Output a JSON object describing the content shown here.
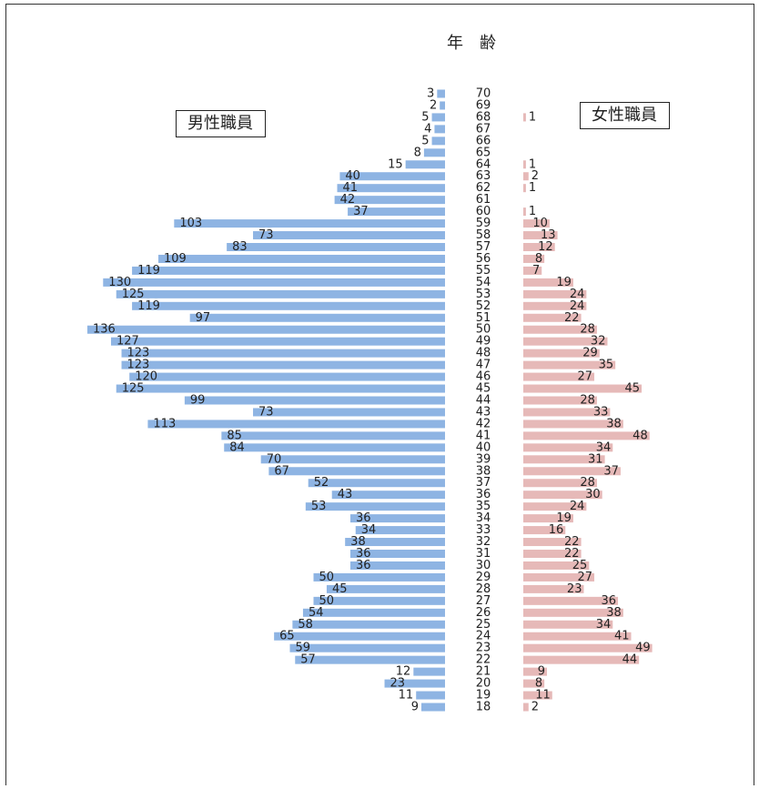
{
  "chart_data": {
    "type": "bar",
    "title": "年　齢",
    "categories": [
      "70",
      "69",
      "68",
      "67",
      "66",
      "65",
      "64",
      "63",
      "62",
      "61",
      "60",
      "59",
      "58",
      "57",
      "56",
      "55",
      "54",
      "53",
      "52",
      "51",
      "50",
      "49",
      "48",
      "47",
      "46",
      "45",
      "44",
      "43",
      "42",
      "41",
      "40",
      "39",
      "38",
      "37",
      "36",
      "35",
      "34",
      "33",
      "32",
      "31",
      "30",
      "29",
      "28",
      "27",
      "26",
      "25",
      "24",
      "23",
      "22",
      "21",
      "20",
      "19",
      "18"
    ],
    "series": [
      {
        "name": "男性職員",
        "color": "#8eb4e3",
        "values": [
          3,
          2,
          5,
          4,
          5,
          8,
          15,
          40,
          41,
          42,
          37,
          103,
          73,
          83,
          109,
          119,
          130,
          125,
          119,
          97,
          136,
          127,
          123,
          123,
          120,
          125,
          99,
          73,
          113,
          85,
          84,
          70,
          67,
          52,
          43,
          53,
          36,
          34,
          38,
          36,
          36,
          50,
          45,
          50,
          54,
          58,
          65,
          59,
          57,
          12,
          23,
          11,
          9
        ]
      },
      {
        "name": "女性職員",
        "color": "#e6b9b8",
        "values": [
          null,
          null,
          1,
          null,
          null,
          null,
          1,
          2,
          1,
          null,
          1,
          10,
          13,
          12,
          8,
          7,
          19,
          24,
          24,
          22,
          28,
          32,
          29,
          35,
          27,
          45,
          28,
          33,
          38,
          48,
          34,
          31,
          37,
          28,
          30,
          24,
          19,
          16,
          22,
          22,
          25,
          27,
          23,
          36,
          38,
          34,
          41,
          49,
          44,
          9,
          8,
          11,
          2
        ]
      }
    ]
  }
}
